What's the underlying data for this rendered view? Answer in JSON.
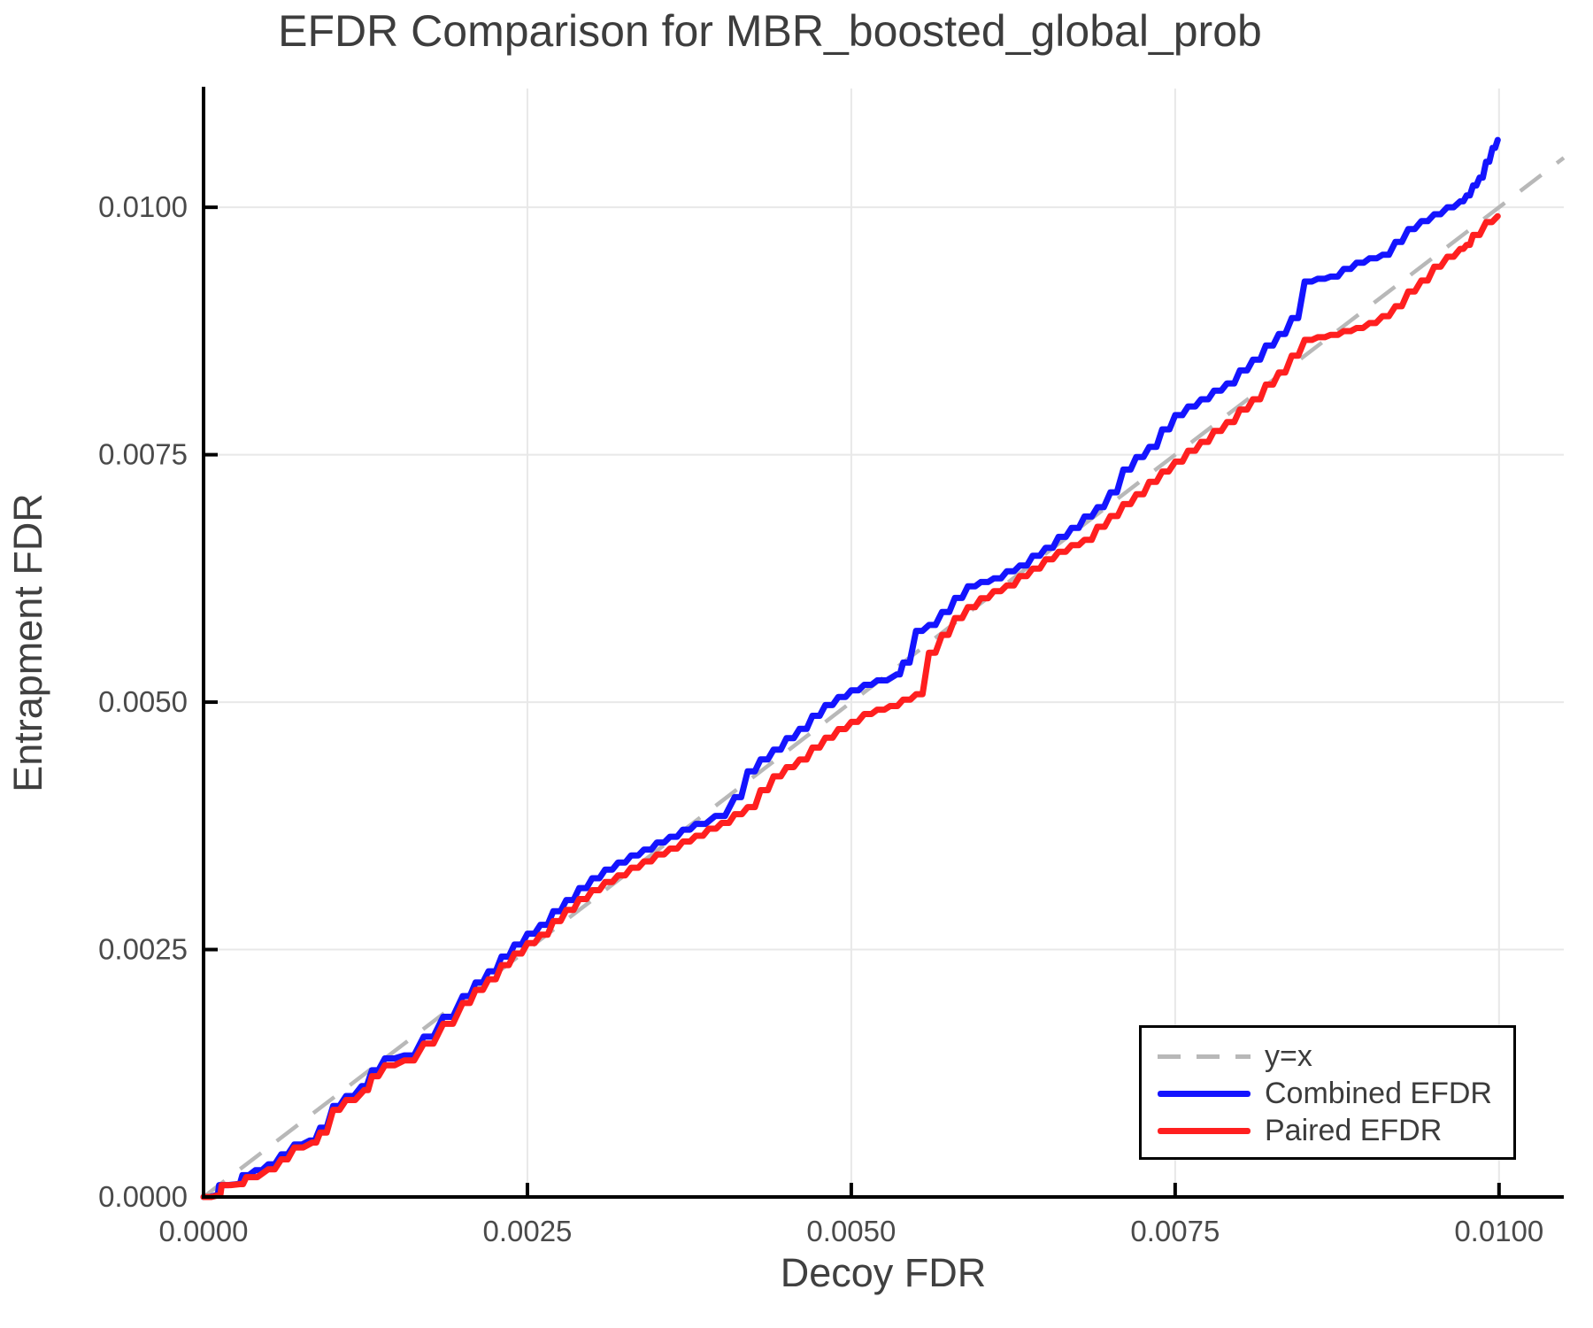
{
  "chart_data": {
    "type": "line",
    "title": "EFDR Comparison for MBR_boosted_global_prob",
    "xlabel": "Decoy FDR",
    "ylabel": "Entrapment FDR",
    "xlim": [
      0,
      0.0105
    ],
    "ylim": [
      0,
      0.0112
    ],
    "grid": true,
    "legend_position": "lower right",
    "xticks": {
      "values": [
        0,
        0.0025,
        0.005,
        0.0075,
        0.01
      ],
      "labels": [
        "0.0000",
        "0.0025",
        "0.0050",
        "0.0075",
        "0.0100"
      ]
    },
    "yticks": {
      "values": [
        0,
        0.0025,
        0.005,
        0.0075,
        0.01
      ],
      "labels": [
        "0.0000",
        "0.0025",
        "0.0050",
        "0.0075",
        "0.0100"
      ]
    },
    "series": [
      {
        "name": "y=x",
        "color": "#b8b8b8",
        "style": "dashed",
        "points": [
          [
            0,
            0
          ],
          [
            0.0105,
            0.0105
          ]
        ]
      },
      {
        "name": "Combined EFDR",
        "color": "#1414ff",
        "style": "solid",
        "points": [
          [
            0,
            0
          ],
          [
            0.0001,
            2e-05
          ],
          [
            0.00012,
            0.00012
          ],
          [
            0.00026,
            0.00013
          ],
          [
            0.0003,
            0.00022
          ],
          [
            0.0004,
            0.00027
          ],
          [
            0.0005,
            0.00033
          ],
          [
            0.0006,
            0.00043
          ],
          [
            0.0007,
            0.00053
          ],
          [
            0.00082,
            0.00057
          ],
          [
            0.0009,
            0.0007
          ],
          [
            0.001,
            0.00092
          ],
          [
            0.0011,
            0.00102
          ],
          [
            0.00122,
            0.00112
          ],
          [
            0.0013,
            0.00128
          ],
          [
            0.0014,
            0.0014
          ],
          [
            0.00155,
            0.00143
          ],
          [
            0.0017,
            0.00162
          ],
          [
            0.00185,
            0.00182
          ],
          [
            0.002,
            0.00203
          ],
          [
            0.0022,
            0.00228
          ],
          [
            0.0024,
            0.00255
          ],
          [
            0.0026,
            0.00275
          ],
          [
            0.0028,
            0.003
          ],
          [
            0.003,
            0.00322
          ],
          [
            0.0032,
            0.00338
          ],
          [
            0.0034,
            0.00351
          ],
          [
            0.0036,
            0.00364
          ],
          [
            0.0038,
            0.00377
          ],
          [
            0.00395,
            0.00385
          ],
          [
            0.0041,
            0.00404
          ],
          [
            0.0042,
            0.0043
          ],
          [
            0.0044,
            0.00452
          ],
          [
            0.0046,
            0.00473
          ],
          [
            0.0048,
            0.00497
          ],
          [
            0.005,
            0.00512
          ],
          [
            0.0052,
            0.00522
          ],
          [
            0.00535,
            0.00528
          ],
          [
            0.0054,
            0.0054
          ],
          [
            0.0055,
            0.00572
          ],
          [
            0.0056,
            0.00578
          ],
          [
            0.0057,
            0.00591
          ],
          [
            0.0059,
            0.00617
          ],
          [
            0.0061,
            0.00625
          ],
          [
            0.0063,
            0.00638
          ],
          [
            0.0065,
            0.00656
          ],
          [
            0.0067,
            0.00676
          ],
          [
            0.0069,
            0.00697
          ],
          [
            0.007,
            0.00712
          ],
          [
            0.0071,
            0.00735
          ],
          [
            0.0073,
            0.00758
          ],
          [
            0.0075,
            0.0079
          ],
          [
            0.0077,
            0.00806
          ],
          [
            0.0079,
            0.00822
          ],
          [
            0.0081,
            0.00846
          ],
          [
            0.0083,
            0.00872
          ],
          [
            0.0084,
            0.00888
          ],
          [
            0.0085,
            0.00925
          ],
          [
            0.0087,
            0.0093
          ],
          [
            0.0089,
            0.00944
          ],
          [
            0.0091,
            0.00952
          ],
          [
            0.0092,
            0.00965
          ],
          [
            0.0093,
            0.00978
          ],
          [
            0.0094,
            0.00986
          ],
          [
            0.0095,
            0.00993
          ],
          [
            0.0096,
            0.01
          ],
          [
            0.0097,
            0.01006
          ],
          [
            0.00975,
            0.01012
          ],
          [
            0.0098,
            0.01022
          ],
          [
            0.00985,
            0.0103
          ],
          [
            0.0099,
            0.01046
          ],
          [
            0.00995,
            0.0106
          ],
          [
            0.00999,
            0.01068
          ]
        ]
      },
      {
        "name": "Paired EFDR",
        "color": "#ff1f1f",
        "style": "solid",
        "points": [
          [
            0,
            0
          ],
          [
            0.00012,
            2e-05
          ],
          [
            0.00014,
            0.00012
          ],
          [
            0.00028,
            0.00013
          ],
          [
            0.00033,
            0.0002
          ],
          [
            0.0005,
            0.00028
          ],
          [
            0.0006,
            0.00038
          ],
          [
            0.0007,
            0.0005
          ],
          [
            0.00084,
            0.00055
          ],
          [
            0.0009,
            0.00065
          ],
          [
            0.001,
            0.00088
          ],
          [
            0.0011,
            0.00098
          ],
          [
            0.00124,
            0.00108
          ],
          [
            0.0013,
            0.00122
          ],
          [
            0.0014,
            0.00133
          ],
          [
            0.00155,
            0.00138
          ],
          [
            0.0017,
            0.00155
          ],
          [
            0.00185,
            0.00175
          ],
          [
            0.002,
            0.00196
          ],
          [
            0.0022,
            0.0022
          ],
          [
            0.0024,
            0.00246
          ],
          [
            0.0026,
            0.00265
          ],
          [
            0.0028,
            0.0029
          ],
          [
            0.003,
            0.0031
          ],
          [
            0.0032,
            0.00325
          ],
          [
            0.0034,
            0.00339
          ],
          [
            0.0036,
            0.00352
          ],
          [
            0.0038,
            0.00365
          ],
          [
            0.004,
            0.00378
          ],
          [
            0.0042,
            0.00394
          ],
          [
            0.0044,
            0.00425
          ],
          [
            0.0046,
            0.00442
          ],
          [
            0.0048,
            0.00464
          ],
          [
            0.005,
            0.0048
          ],
          [
            0.0051,
            0.00488
          ],
          [
            0.0053,
            0.00496
          ],
          [
            0.0055,
            0.00508
          ],
          [
            0.0056,
            0.0055
          ],
          [
            0.0057,
            0.00568
          ],
          [
            0.0058,
            0.00585
          ],
          [
            0.006,
            0.00605
          ],
          [
            0.0062,
            0.00618
          ],
          [
            0.0064,
            0.00635
          ],
          [
            0.0066,
            0.00652
          ],
          [
            0.0068,
            0.00664
          ],
          [
            0.007,
            0.00688
          ],
          [
            0.0072,
            0.0071
          ],
          [
            0.0074,
            0.00733
          ],
          [
            0.0075,
            0.00743
          ],
          [
            0.0077,
            0.00763
          ],
          [
            0.0079,
            0.00783
          ],
          [
            0.0081,
            0.00806
          ],
          [
            0.0083,
            0.00833
          ],
          [
            0.0084,
            0.0085
          ],
          [
            0.0085,
            0.00866
          ],
          [
            0.0087,
            0.00871
          ],
          [
            0.0089,
            0.00878
          ],
          [
            0.009,
            0.00883
          ],
          [
            0.0091,
            0.0089
          ],
          [
            0.0092,
            0.009
          ],
          [
            0.0093,
            0.00915
          ],
          [
            0.0094,
            0.00926
          ],
          [
            0.0095,
            0.0094
          ],
          [
            0.0096,
            0.0095
          ],
          [
            0.0097,
            0.00958
          ],
          [
            0.00975,
            0.00962
          ],
          [
            0.0098,
            0.00972
          ],
          [
            0.0099,
            0.00985
          ],
          [
            0.00999,
            0.00991
          ]
        ]
      }
    ]
  }
}
